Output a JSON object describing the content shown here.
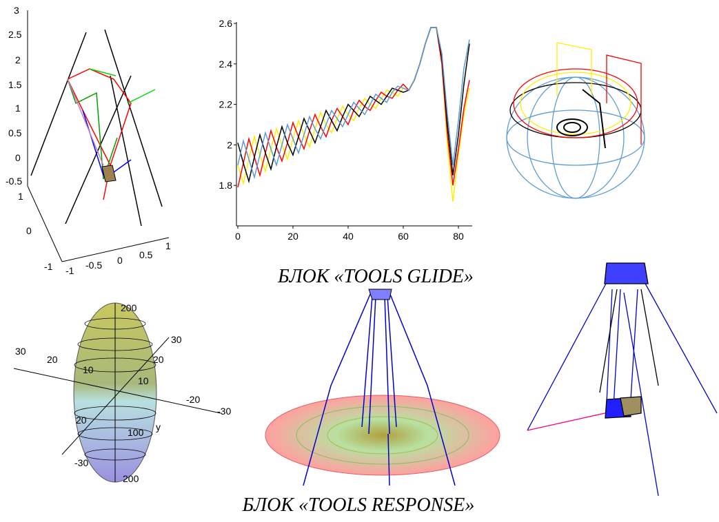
{
  "glide_plots": {
    "left_3d": {
      "labels": [
        "3",
        "2.5",
        "2",
        "1.5",
        "1",
        "0.5",
        "0",
        "-0.5",
        "1",
        "0",
        "-1",
        "-1",
        "-0.5",
        "0",
        "0.5",
        "1"
      ]
    },
    "chart_data": {
      "type": "line",
      "x": [
        0,
        2,
        4,
        6,
        8,
        10,
        12,
        14,
        16,
        18,
        20,
        22,
        24,
        26,
        28,
        30,
        32,
        34,
        36,
        38,
        40,
        42,
        44,
        46,
        48,
        50,
        52,
        54,
        56,
        58,
        60,
        62,
        64,
        66,
        68,
        70,
        72,
        74,
        76,
        78,
        80,
        82,
        84
      ],
      "series": [
        {
          "color": "#ffee00",
          "values": [
            1.9,
            1.81,
            1.93,
            2.04,
            1.95,
            1.87,
            1.98,
            2.08,
            2.0,
            1.93,
            2.03,
            2.12,
            2.05,
            1.99,
            2.08,
            2.16,
            2.1,
            2.06,
            2.13,
            2.19,
            2.15,
            2.12,
            2.18,
            2.23,
            2.2,
            2.18,
            2.23,
            2.27,
            2.26,
            2.24,
            2.28,
            2.27,
            2.32,
            2.4,
            2.5,
            2.58,
            2.58,
            2.4,
            2.0,
            1.72,
            1.95,
            2.15,
            2.28
          ]
        },
        {
          "color": "#ff0000",
          "values": [
            1.79,
            1.91,
            2.03,
            1.94,
            1.85,
            1.96,
            2.07,
            1.99,
            1.92,
            2.01,
            2.11,
            2.04,
            1.98,
            2.07,
            2.15,
            2.09,
            2.04,
            2.12,
            2.18,
            2.14,
            2.1,
            2.17,
            2.22,
            2.19,
            2.17,
            2.22,
            2.26,
            2.24,
            2.23,
            2.27,
            2.3,
            2.27,
            2.32,
            2.4,
            2.5,
            2.58,
            2.58,
            2.4,
            2.05,
            1.8,
            1.98,
            2.18,
            2.32
          ]
        },
        {
          "color": "#000000",
          "values": [
            2.01,
            1.91,
            1.82,
            1.94,
            2.05,
            1.96,
            1.88,
            1.99,
            2.09,
            2.01,
            1.95,
            2.04,
            2.13,
            2.07,
            2.01,
            2.09,
            2.17,
            2.12,
            2.07,
            2.14,
            2.2,
            2.17,
            2.14,
            2.19,
            2.24,
            2.22,
            2.2,
            2.24,
            2.28,
            2.27,
            2.26,
            2.27,
            2.32,
            2.4,
            2.5,
            2.58,
            2.58,
            2.43,
            2.1,
            1.85,
            2.05,
            2.3,
            2.5
          ]
        },
        {
          "color": "#5b9bd5",
          "values": [
            1.9,
            2.02,
            1.93,
            1.84,
            1.95,
            2.06,
            1.98,
            1.9,
            2.0,
            2.1,
            2.03,
            1.96,
            2.05,
            2.14,
            2.08,
            2.03,
            2.1,
            2.17,
            2.13,
            2.09,
            2.15,
            2.21,
            2.18,
            2.15,
            2.2,
            2.25,
            2.23,
            2.21,
            2.26,
            2.29,
            2.28,
            2.27,
            2.32,
            2.4,
            2.5,
            2.58,
            2.58,
            2.45,
            2.15,
            1.9,
            2.12,
            2.38,
            2.52
          ]
        }
      ],
      "xlim": [
        0,
        85
      ],
      "xticks": [
        0,
        20,
        40,
        60,
        80
      ],
      "ylim": [
        1.6,
        2.6
      ],
      "yticks": [
        1.8,
        2,
        2.2,
        2.4,
        2.6
      ]
    },
    "caption": "БЛОК «TOOLS GLIDE»"
  },
  "response_plots": {
    "left_3d": {
      "labels": [
        "200",
        "30",
        "30",
        "20",
        "20",
        "10",
        "10",
        "-20",
        "-30",
        "20",
        "100",
        "y",
        "-30",
        "200"
      ]
    },
    "caption": "БЛОК «TOOLS RESPONSE»"
  }
}
